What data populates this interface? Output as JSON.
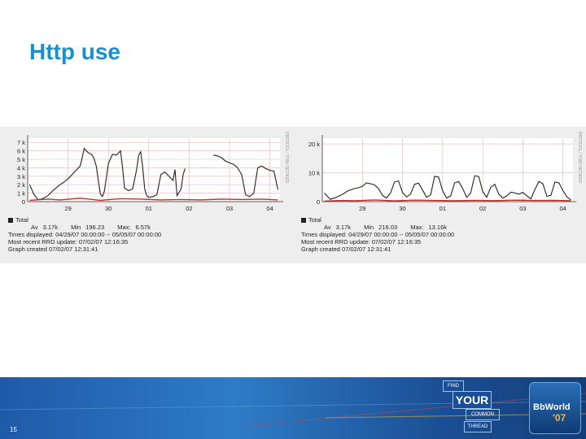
{
  "slide": {
    "title": "Http use",
    "page_number": "15"
  },
  "colors": {
    "title": "#1a8fd0",
    "series_total": "#222222",
    "series_red": "#c0302a",
    "grid": "#e8b4b4",
    "footer": "#1f5aa8"
  },
  "footer": {
    "logo_words": [
      "FIND",
      "YOUR",
      "COMMON",
      "THREAD"
    ],
    "brand": "BbWorld",
    "brand_year": "'07"
  },
  "chart_data": [
    {
      "type": "line",
      "watermark": "RRDTOOL / TOBI OETIKER",
      "y_ticks": [
        "7 k",
        "6 k",
        "5 k",
        "4 k",
        "3 k",
        "2 k",
        "1 k",
        "0"
      ],
      "y_tick_values": [
        7000,
        6000,
        5000,
        4000,
        3000,
        2000,
        1000,
        0
      ],
      "ylim": [
        0,
        7500
      ],
      "x_ticks": [
        "29",
        "30",
        "01",
        "02",
        "03",
        "04"
      ],
      "x_tick_values": [
        0.2,
        1.2,
        2.2,
        3.2,
        4.2,
        5.2
      ],
      "xlim": [
        -0.8,
        5.45
      ],
      "grid": true,
      "legend_label": "Total",
      "stats": {
        "av_label": "Av",
        "av": "3.17k",
        "min_label": "Min",
        "min": "196.23",
        "max_label": "Max:",
        "max": "6.57k"
      },
      "info_lines": [
        "Times displayed: 04/29/07 00:00:00 -- 05/05/07 00:00:00",
        "Most recent RRD update: 07/02/07 12:16:35",
        "Graph created 07/02/07 12:31:41"
      ],
      "series": [
        {
          "x": [
            -0.75,
            -0.65,
            -0.55,
            -0.45,
            -0.3,
            -0.15,
            0.0,
            0.1,
            0.2,
            0.3,
            0.4,
            0.5,
            0.55,
            0.6,
            0.65,
            0.7,
            0.8,
            0.85,
            0.9,
            0.95,
            1.0,
            1.05,
            1.1,
            1.2,
            1.3,
            1.4,
            1.5,
            1.55,
            1.6,
            1.7,
            1.8,
            1.9,
            1.95,
            2.0,
            2.05,
            2.1,
            2.15,
            2.2,
            2.3,
            2.4,
            2.5,
            2.6,
            2.7,
            2.8,
            2.85,
            2.9,
            3.0,
            3.05,
            3.1,
            3.2,
            3.3,
            3.4,
            3.5,
            3.6,
            3.8,
            3.9,
            4.0,
            4.1,
            4.2,
            4.3,
            4.4,
            4.5,
            4.6,
            4.7,
            4.8,
            4.9,
            5.0,
            5.1,
            5.2,
            5.3,
            5.4
          ],
          "y": [
            2000,
            900,
            250,
            300,
            700,
            1400,
            2000,
            2300,
            2700,
            3200,
            3700,
            4200,
            5200,
            6300,
            6000,
            5800,
            5500,
            5000,
            4200,
            2500,
            900,
            600,
            1200,
            4500,
            5600,
            5500,
            6000,
            4000,
            1600,
            1300,
            1500,
            3800,
            5500,
            5900,
            4000,
            1500,
            700,
            500,
            600,
            800,
            3200,
            3500,
            3000,
            2500,
            3800,
            700,
            1500,
            3200,
            3900,
            null,
            null,
            null,
            null,
            null,
            5500,
            5400,
            5200,
            4800,
            4600,
            4400,
            4000,
            3200,
            800,
            600,
            1000,
            4000,
            4200,
            3900,
            3700,
            3600,
            1400
          ]
        },
        {
          "x": [
            -0.75,
            -0.3,
            0.0,
            0.5,
            1.0,
            1.5,
            2.0,
            2.5,
            3.0,
            3.5,
            4.0,
            4.5,
            5.0,
            5.4
          ],
          "y": [
            150,
            300,
            200,
            400,
            150,
            350,
            300,
            200,
            250,
            200,
            300,
            250,
            300,
            200
          ]
        }
      ]
    },
    {
      "type": "line",
      "watermark": "RRDTOOL / TOBI OETIKER",
      "y_ticks": [
        "20 k",
        "10 k",
        "0"
      ],
      "y_tick_values": [
        20000,
        10000,
        0
      ],
      "ylim": [
        0,
        22000
      ],
      "x_ticks": [
        "29",
        "30",
        "01",
        "02",
        "03",
        "04"
      ],
      "x_tick_values": [
        0.2,
        1.2,
        2.2,
        3.2,
        4.2,
        5.2
      ],
      "xlim": [
        -0.8,
        5.45
      ],
      "grid": true,
      "legend_label": "Total",
      "stats": {
        "av_label": "Av",
        "av": "3.17k",
        "min_label": "Min",
        "min": "216.03",
        "max_label": "Max:",
        "max": "13.16k"
      },
      "info_lines": [
        "Times displayed: 04/29/07 00:00:00 -- 05/05/07 00:00:00",
        "Most recent RRD update: 07/02/07 12:16:35",
        "Graph created 07/02/07 12:31:41"
      ],
      "series": [
        {
          "x": [
            -0.75,
            -0.6,
            -0.45,
            -0.3,
            -0.15,
            0.0,
            0.1,
            0.2,
            0.3,
            0.4,
            0.5,
            0.6,
            0.7,
            0.8,
            0.9,
            1.0,
            1.1,
            1.2,
            1.3,
            1.4,
            1.5,
            1.6,
            1.7,
            1.8,
            1.9,
            2.0,
            2.1,
            2.2,
            2.3,
            2.4,
            2.5,
            2.6,
            2.7,
            2.8,
            2.9,
            3.0,
            3.1,
            3.2,
            3.3,
            3.4,
            3.5,
            3.6,
            3.7,
            3.8,
            3.9,
            4.0,
            4.1,
            4.2,
            4.3,
            4.4,
            4.5,
            4.6,
            4.7,
            4.8,
            4.9,
            5.0,
            5.1,
            5.2,
            5.3,
            5.4
          ],
          "y": [
            3000,
            800,
            1500,
            2500,
            3800,
            4500,
            4800,
            5300,
            6500,
            6200,
            5800,
            4500,
            2200,
            1200,
            3000,
            6800,
            7200,
            3200,
            1600,
            2600,
            6000,
            6400,
            4000,
            1500,
            2300,
            8800,
            8500,
            3800,
            1200,
            2000,
            6500,
            7000,
            4500,
            1500,
            3000,
            9000,
            8700,
            3500,
            1500,
            5000,
            6000,
            2600,
            1200,
            2000,
            3300,
            3000,
            2600,
            3200,
            2000,
            1000,
            4200,
            7000,
            6200,
            1800,
            2200,
            6800,
            6500,
            3800,
            1600,
            600
          ]
        },
        {
          "x": [
            -0.75,
            -0.3,
            0.0,
            0.5,
            1.0,
            1.5,
            2.0,
            2.5,
            3.0,
            3.5,
            4.0,
            4.5,
            5.0,
            5.4
          ],
          "y": [
            200,
            400,
            300,
            600,
            250,
            500,
            400,
            300,
            450,
            350,
            500,
            400,
            450,
            300
          ]
        }
      ]
    }
  ]
}
